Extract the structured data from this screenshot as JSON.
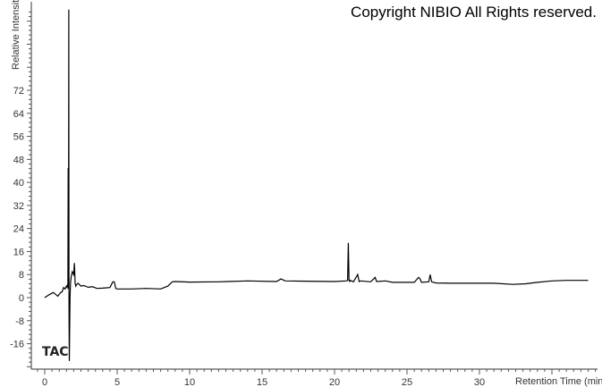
{
  "copyright": "Copyright NIBIO All Rights reserved.",
  "chart_data": {
    "type": "line",
    "title": "",
    "xlabel": "Retention Time (min)",
    "ylabel": "Relative Intensity",
    "trace_label": "TAC",
    "xlim": [
      -0.5,
      38.5
    ],
    "ylim": [
      -25,
      101
    ],
    "xticks": [
      0,
      5,
      10,
      15,
      20,
      25,
      30
    ],
    "yticks": [
      -16,
      -8,
      0,
      8,
      16,
      24,
      32,
      40,
      48,
      56,
      64,
      72
    ],
    "grid": false,
    "line_color": "#000000",
    "series": [
      {
        "x": [
          0,
          0.3,
          0.6,
          0.9,
          1.1,
          1.2,
          1.3,
          1.4,
          1.5,
          1.55,
          1.6,
          1.62,
          1.64,
          1.66,
          1.67,
          1.68,
          1.7,
          1.72,
          1.75,
          1.78,
          1.82,
          1.9,
          2.0,
          2.05,
          2.1,
          2.15,
          2.2,
          2.3,
          2.5,
          2.7,
          3.0,
          3.3,
          3.6,
          4.0,
          4.5,
          4.7,
          4.8,
          4.9,
          5.0,
          6.0,
          7.0,
          8.0,
          8.5,
          8.8,
          9.0,
          10,
          12,
          14,
          16,
          16.3,
          16.6,
          18,
          20,
          20.8,
          20.9,
          20.95,
          21.0,
          21.05,
          21.1,
          21.3,
          21.6,
          21.7,
          21.8,
          22.5,
          22.8,
          22.9,
          23.5,
          24.0,
          25.5,
          25.8,
          25.9,
          26.0,
          26.5,
          26.6,
          26.7,
          27.0,
          28,
          30,
          31,
          32.3,
          33.2,
          34,
          35,
          36,
          37.5
        ],
        "y": [
          0,
          1,
          1.8,
          0.5,
          1.8,
          2,
          3.5,
          3,
          4,
          3.5,
          5,
          45,
          3,
          100,
          5,
          -8,
          -22,
          -10,
          0,
          5,
          7,
          9,
          8,
          12,
          5,
          4,
          4.5,
          5,
          4,
          4.2,
          3.6,
          3.8,
          3.2,
          3.3,
          3.5,
          5.5,
          5.5,
          3.2,
          3,
          3,
          3.2,
          3,
          4,
          5.5,
          5.6,
          5.4,
          5.5,
          5.8,
          5.6,
          6.5,
          5.8,
          5.7,
          5.6,
          5.8,
          6,
          19,
          6,
          5.6,
          6,
          5.5,
          8,
          5.6,
          5.8,
          5.5,
          7,
          5.6,
          5.8,
          5.3,
          5.3,
          7,
          6.5,
          5.3,
          5.5,
          8,
          5.5,
          5.1,
          5,
          5,
          5,
          4.6,
          4.8,
          5.3,
          5.8,
          6,
          6
        ]
      }
    ]
  }
}
